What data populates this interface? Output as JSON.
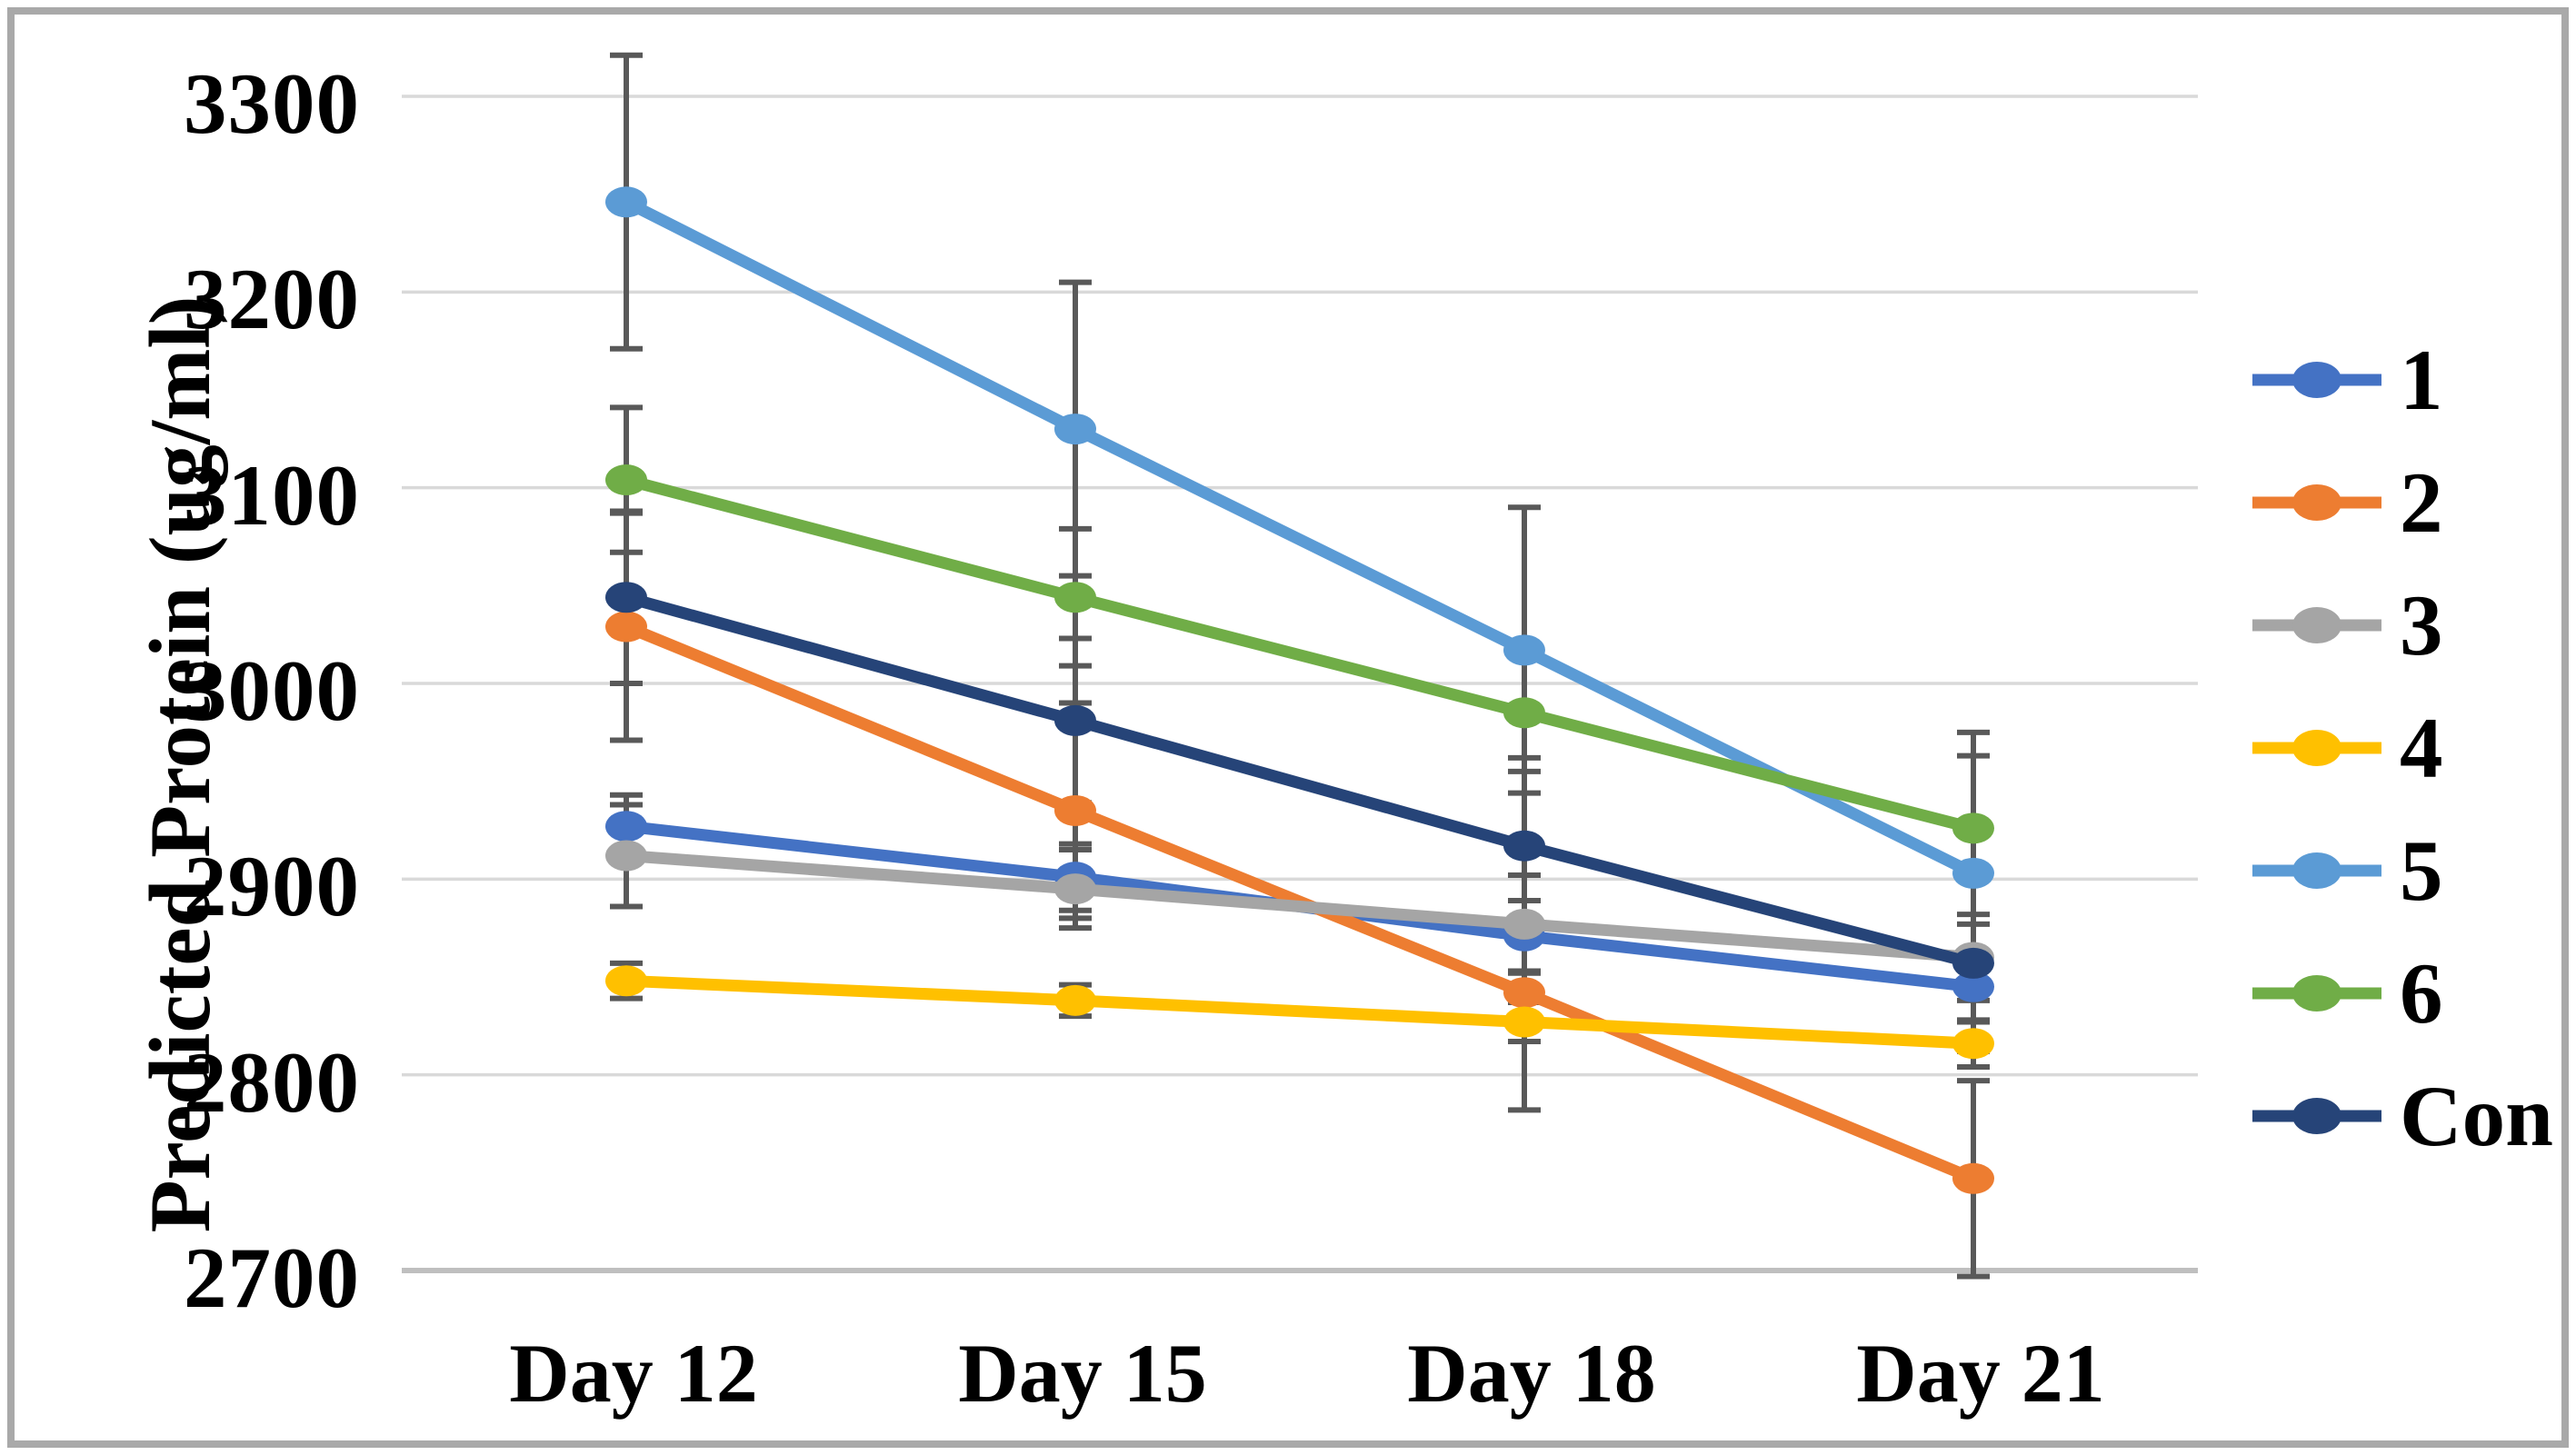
{
  "figure": {
    "border_color": "#a9a9a9",
    "background": "#ffffff"
  },
  "chart_data": {
    "type": "line",
    "title": "",
    "xlabel": "",
    "ylabel": "Predicted Protein  (ug/ml)",
    "categories": [
      "Day 12",
      "Day 15",
      "Day 18",
      "Day 21"
    ],
    "y_ticks": [
      3300,
      3200,
      3100,
      3000,
      2900,
      2800,
      2700
    ],
    "ylim": [
      2700,
      3300
    ],
    "grid": true,
    "grid_color": "#d9d9d9",
    "axis_line_color": "#bfbfbf",
    "error_bar_color": "#595959",
    "legend_position": "right",
    "series": [
      {
        "name": "1",
        "color": "#4472C4",
        "values": [
          2927,
          2901,
          2871,
          2845
        ],
        "error": [
          16,
          17,
          18,
          18
        ]
      },
      {
        "name": "2",
        "color": "#ED7D31",
        "values": [
          3029,
          2935,
          2842,
          2747
        ],
        "error": [
          58,
          55,
          60,
          50
        ]
      },
      {
        "name": "3",
        "color": "#A5A5A5",
        "values": [
          2912,
          2895,
          2877,
          2860
        ],
        "error": [
          26,
          20,
          25,
          22
        ]
      },
      {
        "name": "4",
        "color": "#FFC000",
        "values": [
          2848,
          2838,
          2827,
          2816
        ],
        "error": [
          9,
          8,
          10,
          12
        ]
      },
      {
        "name": "5",
        "color": "#5B9BD5",
        "values": [
          3246,
          3130,
          3017,
          2903
        ],
        "error": [
          75,
          75,
          73,
          60
        ]
      },
      {
        "name": "6",
        "color": "#70AD47",
        "values": [
          3104,
          3044,
          2985,
          2926
        ],
        "error": [
          37,
          35,
          30,
          49
        ]
      },
      {
        "name": "Con",
        "color": "#264478",
        "values": [
          3044,
          2981,
          2917,
          2857
        ],
        "error": [
          44,
          42,
          45,
          45
        ]
      }
    ]
  }
}
